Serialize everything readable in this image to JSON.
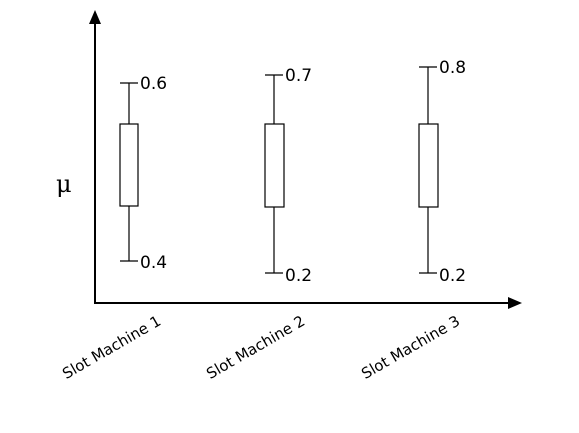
{
  "y_axis": {
    "symbol": "μ"
  },
  "boxes": [
    {
      "category": "Slot Machine 1",
      "upper_label": "0.6",
      "lower_label": "0.4"
    },
    {
      "category": "Slot Machine 2",
      "upper_label": "0.7",
      "lower_label": "0.2"
    },
    {
      "category": "Slot Machine 3",
      "upper_label": "0.8",
      "lower_label": "0.2"
    }
  ],
  "colors": {
    "stroke": "#000000",
    "background": "#ffffff"
  }
}
